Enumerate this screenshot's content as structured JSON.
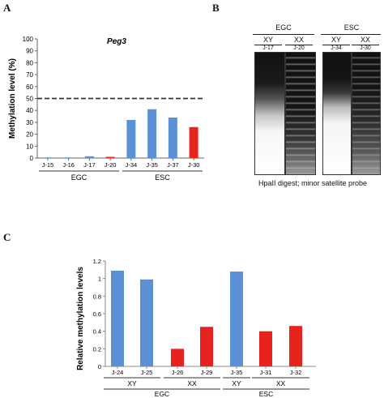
{
  "panels": {
    "a": "A",
    "b": "B",
    "c": "C"
  },
  "chart_data": [
    {
      "type": "bar",
      "title": "Peg3",
      "ylabel": "Methylation level (%)",
      "xlabel": "",
      "ylim": [
        0,
        100
      ],
      "yticks": [
        "0",
        "10",
        "20",
        "30",
        "40",
        "50",
        "60",
        "70",
        "80",
        "90",
        "100"
      ],
      "categories": [
        "J-15",
        "J-16",
        "J-17",
        "J-20",
        "J-34",
        "J-35",
        "J-37",
        "J-30"
      ],
      "values": [
        0.5,
        0.5,
        1.5,
        1.0,
        32,
        41,
        34,
        26
      ],
      "bar_colors": [
        "#5b8fd6",
        "#5b8fd6",
        "#5b8fd6",
        "#e8231e",
        "#5b8fd6",
        "#5b8fd6",
        "#5b8fd6",
        "#e8231e"
      ],
      "reference_line": 50,
      "groups": [
        {
          "label": "EGC",
          "from": 0,
          "to": 3
        },
        {
          "label": "ESC",
          "from": 4,
          "to": 7
        }
      ],
      "grid": false
    },
    {
      "type": "bar",
      "title": "",
      "ylabel": "Relative methylation levels",
      "xlabel": "",
      "ylim": [
        0,
        1.2
      ],
      "yticks": [
        "0",
        "0.2",
        "0.4",
        "0.6",
        "0.8",
        "1",
        "1.2"
      ],
      "categories": [
        "J-24",
        "J-25",
        "J-26",
        "J-29",
        "J-35",
        "J-31",
        "J-32"
      ],
      "values": [
        1.09,
        0.99,
        0.2,
        0.45,
        1.08,
        0.4,
        0.46
      ],
      "bar_colors": [
        "#5b8fd6",
        "#5b8fd6",
        "#e8231e",
        "#e8231e",
        "#5b8fd6",
        "#e8231e",
        "#e8231e"
      ],
      "sex_groups": [
        {
          "label": "XY",
          "from": 0,
          "to": 1
        },
        {
          "label": "XX",
          "from": 2,
          "to": 3
        },
        {
          "label": "XY",
          "from": 4,
          "to": 4
        },
        {
          "label": "XX",
          "from": 5,
          "to": 6
        }
      ],
      "cell_groups": [
        {
          "label": "EGC",
          "from": 0,
          "to": 3
        },
        {
          "label": "ESC",
          "from": 4,
          "to": 6
        }
      ],
      "grid": false
    }
  ],
  "blot": {
    "groups": [
      {
        "label": "EGC",
        "sex": [
          "XY",
          "XX"
        ],
        "lanes": [
          "J-17",
          "J-20"
        ]
      },
      {
        "label": "ESC",
        "sex": [
          "XY",
          "XX"
        ],
        "lanes": [
          "J-34",
          "J-30"
        ]
      }
    ],
    "caption": "HpaII digest; minor satellite probe"
  }
}
